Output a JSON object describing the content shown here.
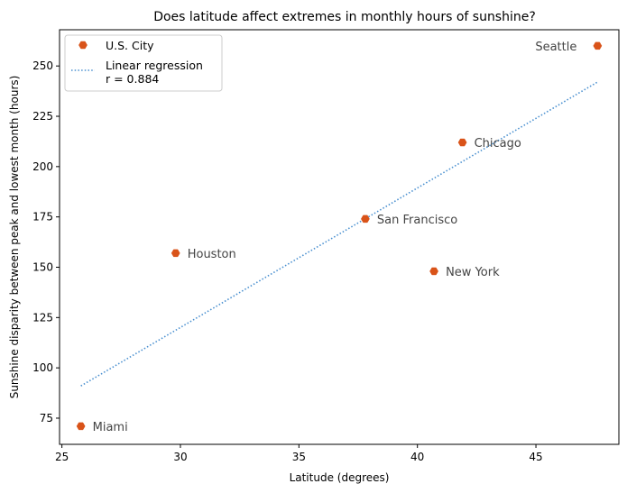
{
  "chart_data": {
    "type": "scatter",
    "title": "Does latitude affect extremes in monthly hours of sunshine?",
    "xlabel": "Latitude (degrees)",
    "ylabel": "Sunshine disparity between peak and lowest month (hours)",
    "xlim": [
      24.9,
      48.5
    ],
    "ylim": [
      62,
      268
    ],
    "xticks": [
      25,
      30,
      35,
      40,
      45
    ],
    "yticks": [
      75,
      100,
      125,
      150,
      175,
      200,
      225,
      250
    ],
    "grid": false,
    "legend_position": "top-left",
    "series": [
      {
        "name": "U.S. City",
        "type": "scatter",
        "color": "#d95319",
        "points": [
          {
            "label": "Miami",
            "x": 25.8,
            "y": 71
          },
          {
            "label": "Houston",
            "x": 29.8,
            "y": 157
          },
          {
            "label": "San Francisco",
            "x": 37.8,
            "y": 174
          },
          {
            "label": "New York",
            "x": 40.7,
            "y": 148
          },
          {
            "label": "Chicago",
            "x": 41.9,
            "y": 212
          },
          {
            "label": "Seattle",
            "x": 47.6,
            "y": 260
          }
        ]
      },
      {
        "name": "Linear regression\nr = 0.884",
        "type": "line",
        "style": "dotted",
        "color": "#4a90d0",
        "x": [
          25.8,
          47.6
        ],
        "y": [
          91,
          242
        ]
      }
    ]
  }
}
